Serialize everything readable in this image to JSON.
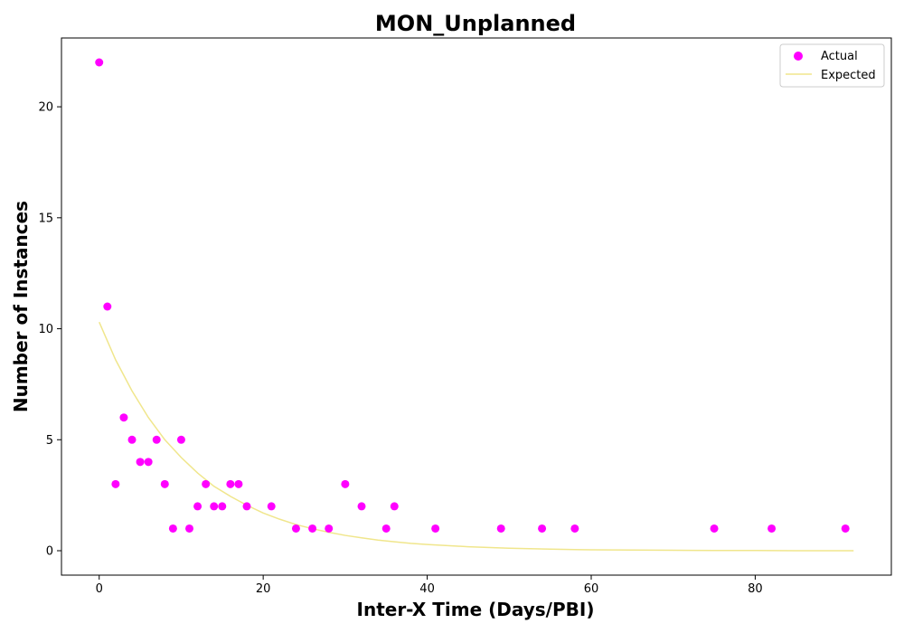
{
  "chart_data": {
    "type": "scatter",
    "title": "MON_Unplanned",
    "xlabel": "Inter-X Time (Days/PBI)",
    "ylabel": "Number of Instances",
    "xlim": [
      -4.6,
      96.6
    ],
    "ylim": [
      -1.1,
      23.1
    ],
    "xticks": [
      0,
      20,
      40,
      60,
      80
    ],
    "yticks": [
      0,
      5,
      10,
      15,
      20
    ],
    "grid": false,
    "legend_position": "top-right",
    "series": [
      {
        "name": "Actual",
        "kind": "scatter",
        "color": "#ff00ff",
        "x": [
          0,
          1,
          2,
          3,
          4,
          5,
          6,
          7,
          8,
          9,
          10,
          11,
          12,
          13,
          14,
          15,
          16,
          17,
          18,
          21,
          24,
          26,
          28,
          30,
          32,
          35,
          36,
          41,
          49,
          54,
          58,
          75,
          82,
          91
        ],
        "y": [
          22,
          11,
          3,
          6,
          5,
          4,
          4,
          5,
          3,
          1,
          5,
          1,
          2,
          3,
          2,
          2,
          3,
          3,
          2,
          2,
          1,
          1,
          1,
          3,
          2,
          1,
          2,
          1,
          1,
          1,
          1,
          1,
          1,
          1
        ]
      },
      {
        "name": "Expected",
        "kind": "line",
        "color": "#f0e68c",
        "x": [
          0,
          2,
          4,
          6,
          8,
          10,
          12,
          14,
          16,
          18,
          20,
          22,
          24,
          26,
          28,
          30,
          32,
          34,
          36,
          38,
          40,
          45,
          50,
          55,
          60,
          65,
          70,
          75,
          80,
          85,
          92
        ],
        "y": [
          10.3,
          8.6,
          7.2,
          6.0,
          5.0,
          4.2,
          3.5,
          2.9,
          2.45,
          2.05,
          1.7,
          1.42,
          1.18,
          0.99,
          0.83,
          0.69,
          0.58,
          0.48,
          0.4,
          0.33,
          0.28,
          0.18,
          0.11,
          0.07,
          0.04,
          0.03,
          0.02,
          0.01,
          0.01,
          0.0,
          0.0
        ]
      }
    ]
  }
}
